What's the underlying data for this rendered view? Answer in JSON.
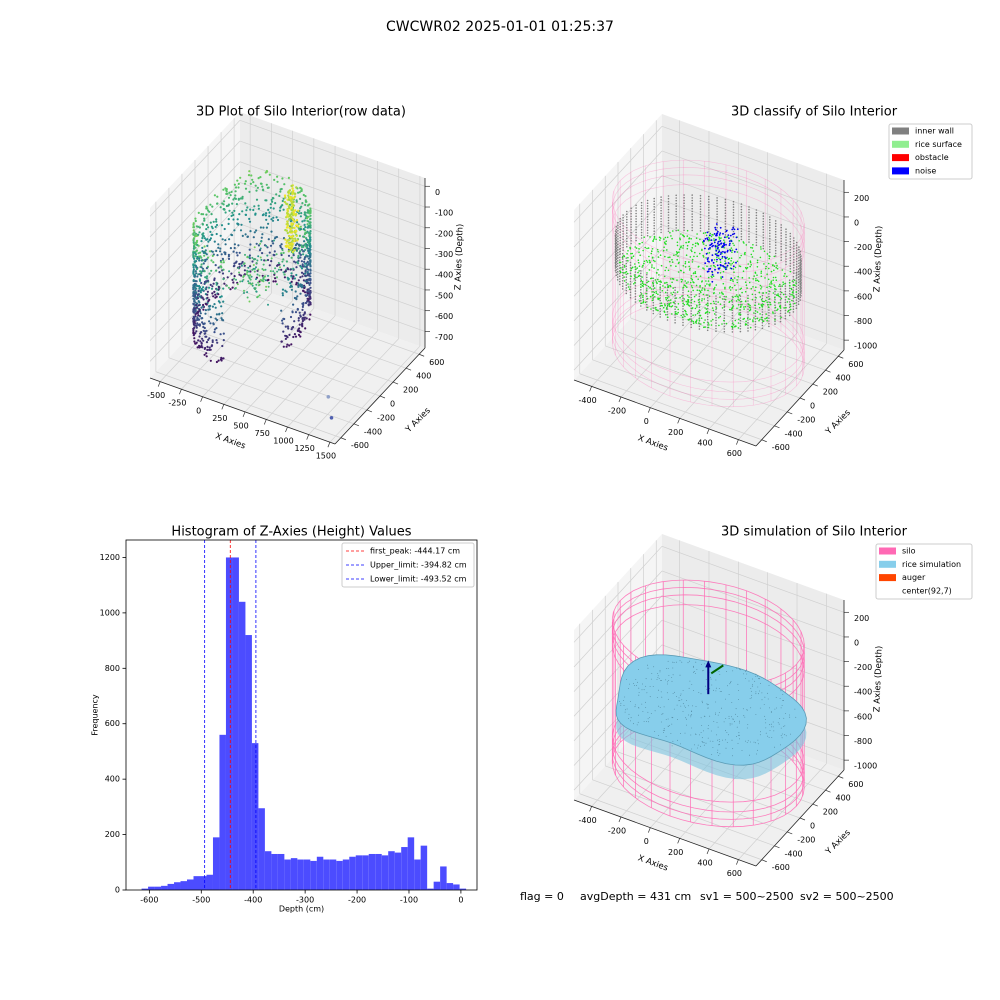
{
  "title": "CWCWR02 2025-01-01 01:25:37",
  "footer": [
    "flag = 0",
    "avgDepth = 431 cm",
    "sv1 = 500~2500",
    "sv2 = 500~2500"
  ],
  "chart_data": [
    {
      "type": "scatter3d",
      "title": "3D Plot of Silo Interior(row data)",
      "colormap": "viridis",
      "xlabel": "X Axies",
      "ylabel": "Y Axies",
      "zlabel": "Z Axies (Depth)",
      "xlim": [
        -620,
        1560
      ],
      "xticks": [
        -500,
        -250,
        0,
        250,
        500,
        750,
        1000,
        1250,
        1500
      ],
      "ylim": [
        -690,
        690
      ],
      "yticks": [
        -600,
        -400,
        -200,
        0,
        200,
        400,
        600
      ],
      "zlim": [
        -780,
        40
      ],
      "zticks": [
        0,
        -100,
        -200,
        -300,
        -400,
        -500,
        -600,
        -700
      ]
    },
    {
      "type": "scatter3d",
      "title": "3D classify of Silo Interior",
      "xlabel": "X Axies",
      "ylabel": "Y Axies",
      "zlabel": "Z Axies (Depth)",
      "xlim": [
        -520,
        720
      ],
      "xticks": [
        -400,
        -200,
        0,
        200,
        400,
        600
      ],
      "ylim": [
        -690,
        690
      ],
      "yticks": [
        -600,
        -400,
        -200,
        0,
        200,
        400,
        600
      ],
      "zlim": [
        -1080,
        300
      ],
      "zticks": [
        200,
        0,
        -200,
        -400,
        -600,
        -800,
        -1000
      ],
      "legend": "upper right",
      "legend_items": [
        {
          "name": "inner wall",
          "color": "gray"
        },
        {
          "name": "rice surface",
          "color": "lightgreen"
        },
        {
          "name": "obstacle",
          "color": "red"
        },
        {
          "name": "noise",
          "color": "blue"
        }
      ]
    },
    {
      "type": "histogram",
      "title": "Histogram of Z-Axies (Height) Values",
      "xlabel": "Depth (cm)",
      "ylabel": "Frequency",
      "color": "#4c4cff",
      "bins": [
        -615,
        -602.5,
        -590,
        -577.5,
        -565,
        -552.5,
        -540,
        -527.5,
        -515,
        -502.5,
        -490,
        -477.5,
        -465,
        -452.5,
        -440,
        -427.5,
        -415,
        -402.5,
        -390,
        -377.5,
        -365,
        -352.5,
        -340,
        -327.5,
        -315,
        -302.5,
        -290,
        -277.5,
        -265,
        -252.5,
        -240,
        -227.5,
        -215,
        -202.5,
        -190,
        -177.5,
        -165,
        -152.5,
        -140,
        -127.5,
        -115,
        -102.5,
        -90,
        -77.5,
        -65,
        -52.5,
        -40,
        -27.5,
        -15,
        -2.5,
        10
      ],
      "values": [
        5,
        12,
        12,
        15,
        22,
        28,
        32,
        38,
        50,
        50,
        55,
        190,
        560,
        1200,
        1200,
        1040,
        920,
        530,
        295,
        140,
        130,
        130,
        110,
        115,
        110,
        110,
        105,
        120,
        110,
        110,
        105,
        110,
        120,
        125,
        125,
        130,
        130,
        125,
        140,
        135,
        155,
        190,
        110,
        160,
        5,
        30,
        85,
        25,
        20,
        5
      ],
      "xlim": [
        -645,
        31
      ],
      "xticks": [
        -600,
        -500,
        -400,
        -300,
        -200,
        -100,
        0
      ],
      "ylim": [
        0,
        1263
      ],
      "yticks": [
        0,
        200,
        400,
        600,
        800,
        1000,
        1200
      ],
      "legend": "upper right",
      "vlines": [
        {
          "label": "first_peak: -444.17 cm",
          "value": -444.17,
          "color": "red"
        },
        {
          "label": "Upper_limit: -394.82 cm",
          "value": -394.82,
          "color": "blue"
        },
        {
          "label": "Lower_limit: -493.52 cm",
          "value": -493.52,
          "color": "blue"
        }
      ]
    },
    {
      "type": "surface3d",
      "title": "3D simulation of Silo Interior",
      "xlabel": "X Axies",
      "ylabel": "Y Axies",
      "zlabel": "Z Axies (Depth)",
      "xlim": [
        -520,
        720
      ],
      "xticks": [
        -400,
        -200,
        0,
        200,
        400,
        600
      ],
      "ylim": [
        -690,
        690
      ],
      "yticks": [
        -600,
        -400,
        -200,
        0,
        200,
        400,
        600
      ],
      "zlim": [
        -1080,
        300
      ],
      "zticks": [
        200,
        0,
        -200,
        -400,
        -600,
        -800,
        -1000
      ],
      "legend": "upper right",
      "legend_items": [
        {
          "name": "silo",
          "color": "hotpink"
        },
        {
          "name": "rice simulation",
          "color": "skyblue"
        },
        {
          "name": "auger",
          "color": "orangered"
        },
        {
          "name": "center(92,7)",
          "color": "white"
        }
      ]
    }
  ]
}
